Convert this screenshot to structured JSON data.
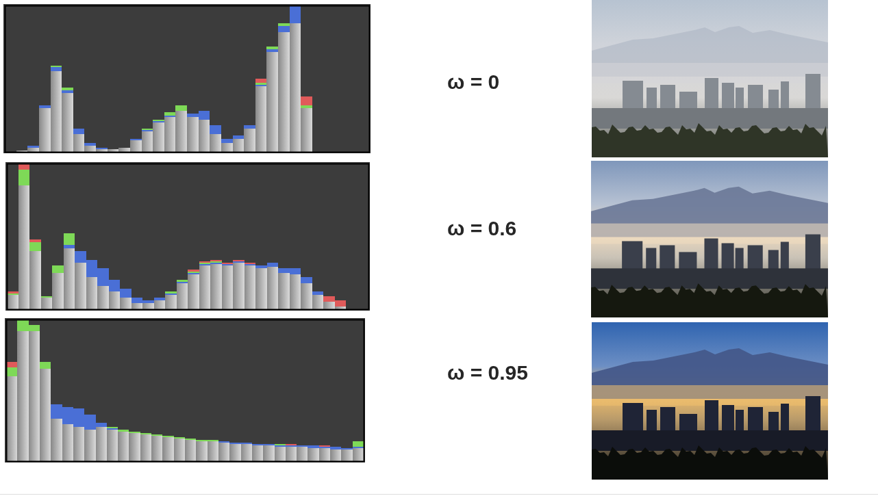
{
  "chart_data": [
    {
      "type": "histogram",
      "annotation": "ω = 0",
      "tick_labels": false,
      "xlim": [
        0,
        256
      ],
      "ylim": [
        0,
        100
      ],
      "bins": [
        0,
        8,
        16,
        24,
        32,
        40,
        48,
        56,
        64,
        72,
        80,
        88,
        96,
        104,
        112,
        120,
        128,
        136,
        144,
        152,
        160,
        168,
        176,
        184,
        192,
        200,
        208,
        216,
        224,
        232,
        240,
        248,
        256
      ],
      "series": [
        {
          "color": "#e05a5a",
          "values": [
            0,
            1,
            3,
            31,
            59,
            44,
            12,
            4,
            2,
            2,
            3,
            9,
            16,
            22,
            26,
            32,
            26,
            23,
            12,
            6,
            9,
            17,
            50,
            70,
            84,
            92,
            38,
            0,
            0,
            0,
            0,
            0
          ]
        },
        {
          "color": "#7ed957",
          "values": [
            0,
            1,
            3,
            31,
            59,
            44,
            12,
            4,
            2,
            2,
            3,
            9,
            16,
            22,
            27,
            32,
            26,
            22,
            12,
            6,
            9,
            17,
            47,
            72,
            88,
            96,
            32,
            0,
            0,
            0,
            0,
            0
          ]
        },
        {
          "color": "#4a6fd6",
          "values": [
            0,
            1,
            4,
            32,
            58,
            42,
            16,
            6,
            3,
            2,
            3,
            9,
            15,
            21,
            25,
            28,
            26,
            28,
            18,
            9,
            11,
            18,
            46,
            70,
            86,
            100,
            30,
            0,
            0,
            0,
            0,
            0
          ]
        },
        {
          "color": "#d8d8d8",
          "values": [
            0,
            1,
            3,
            30,
            55,
            40,
            12,
            4,
            2,
            2,
            3,
            8,
            14,
            20,
            24,
            28,
            24,
            22,
            12,
            6,
            9,
            16,
            45,
            68,
            82,
            88,
            30,
            0,
            0,
            0,
            0,
            0
          ]
        }
      ]
    },
    {
      "type": "histogram",
      "annotation": "ω = 0.6",
      "tick_labels": false,
      "xlim": [
        0,
        256
      ],
      "ylim": [
        0,
        100
      ],
      "bins": [
        0,
        8,
        16,
        24,
        32,
        40,
        48,
        56,
        64,
        72,
        80,
        88,
        96,
        104,
        112,
        120,
        128,
        136,
        144,
        152,
        160,
        168,
        176,
        184,
        192,
        200,
        208,
        216,
        224,
        232,
        240,
        248,
        256
      ],
      "series": [
        {
          "color": "#e05a5a",
          "values": [
            12,
            100,
            48,
            9,
            28,
            50,
            34,
            22,
            14,
            10,
            6,
            4,
            4,
            6,
            12,
            20,
            27,
            33,
            34,
            32,
            34,
            32,
            30,
            31,
            27,
            26,
            20,
            12,
            9,
            6,
            0,
            0
          ]
        },
        {
          "color": "#7ed957",
          "values": [
            11,
            96,
            46,
            9,
            30,
            52,
            36,
            24,
            16,
            12,
            8,
            5,
            5,
            7,
            12,
            20,
            26,
            32,
            33,
            31,
            33,
            31,
            29,
            31,
            28,
            27,
            20,
            11,
            5,
            2,
            0,
            0
          ]
        },
        {
          "color": "#4a6fd6",
          "values": [
            10,
            80,
            38,
            8,
            24,
            44,
            40,
            34,
            28,
            20,
            14,
            8,
            6,
            8,
            11,
            19,
            25,
            31,
            32,
            31,
            33,
            31,
            30,
            32,
            28,
            28,
            22,
            12,
            5,
            2,
            0,
            0
          ]
        },
        {
          "color": "#d8d8d8",
          "values": [
            10,
            85,
            40,
            8,
            25,
            42,
            32,
            22,
            16,
            12,
            8,
            4,
            4,
            6,
            10,
            18,
            24,
            30,
            31,
            30,
            32,
            30,
            28,
            29,
            25,
            24,
            18,
            10,
            5,
            2,
            0,
            0
          ]
        }
      ]
    },
    {
      "type": "histogram",
      "annotation": "ω = 0.95",
      "tick_labels": false,
      "xlim": [
        0,
        256
      ],
      "ylim": [
        0,
        100
      ],
      "bins": [
        0,
        8,
        16,
        24,
        32,
        40,
        48,
        56,
        64,
        72,
        80,
        88,
        96,
        104,
        112,
        120,
        128,
        136,
        144,
        152,
        160,
        168,
        176,
        184,
        192,
        200,
        208,
        216,
        224,
        232,
        240,
        248,
        256
      ],
      "series": [
        {
          "color": "#e05a5a",
          "values": [
            70,
            100,
            90,
            60,
            32,
            28,
            24,
            23,
            26,
            23,
            22,
            21,
            19,
            18,
            17,
            16,
            16,
            15,
            15,
            14,
            13,
            13,
            12,
            12,
            11,
            12,
            11,
            10,
            11,
            9,
            8,
            10
          ]
        },
        {
          "color": "#7ed957",
          "values": [
            66,
            100,
            96,
            70,
            34,
            28,
            26,
            24,
            26,
            24,
            22,
            21,
            20,
            19,
            18,
            17,
            16,
            15,
            15,
            14,
            13,
            13,
            12,
            12,
            12,
            11,
            11,
            10,
            10,
            10,
            9,
            14
          ]
        },
        {
          "color": "#4a6fd6",
          "values": [
            50,
            90,
            80,
            58,
            40,
            38,
            37,
            33,
            27,
            23,
            21,
            20,
            19,
            18,
            17,
            16,
            15,
            14,
            14,
            14,
            13,
            13,
            12,
            12,
            11,
            11,
            11,
            11,
            10,
            10,
            9,
            10
          ]
        },
        {
          "color": "#d8d8d8",
          "values": [
            60,
            92,
            92,
            65,
            30,
            26,
            24,
            22,
            24,
            22,
            21,
            20,
            19,
            18,
            17,
            16,
            15,
            14,
            14,
            13,
            12,
            12,
            11,
            11,
            10,
            10,
            10,
            9,
            9,
            8,
            8,
            9
          ]
        }
      ]
    }
  ]
}
